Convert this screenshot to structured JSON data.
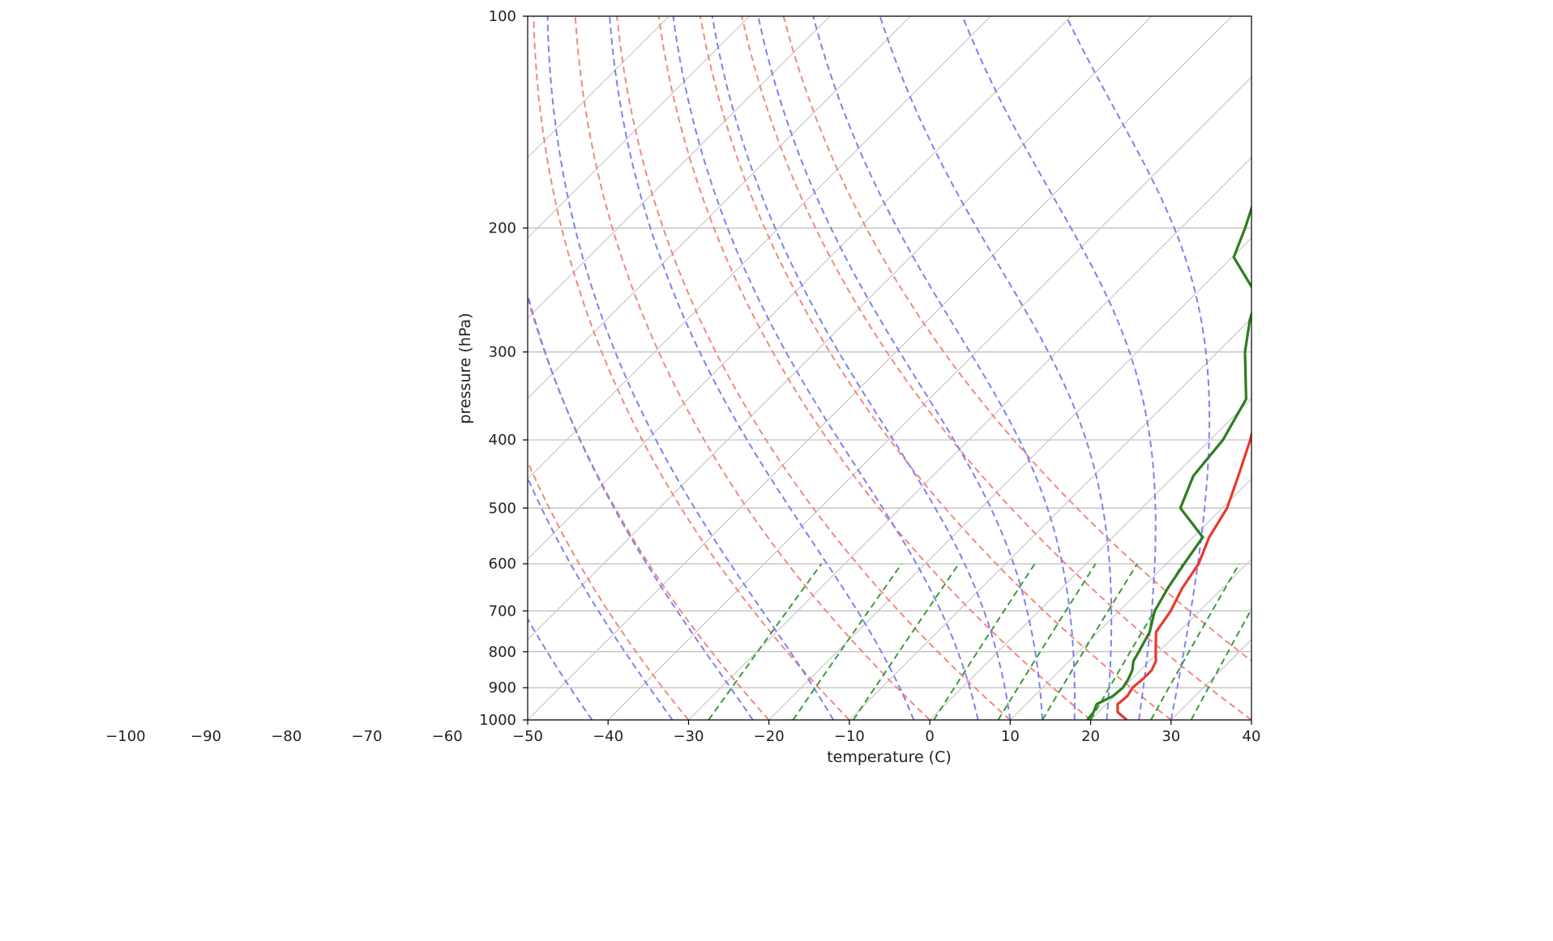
{
  "chart_data": {
    "type": "line",
    "subtype": "skew-t",
    "title": "",
    "xlabel": "temperature (C)",
    "ylabel": "pressure (hPa)",
    "xlim": [
      -50,
      40
    ],
    "ylim": [
      1000,
      100
    ],
    "yscale": "log",
    "x_ticks": [
      -100,
      -90,
      -80,
      -70,
      -60,
      -50,
      -40,
      -30,
      -20,
      -10,
      0,
      10,
      20,
      30,
      40
    ],
    "x_tick_labels": [
      "−100",
      "−90",
      "−80",
      "−70",
      "−60",
      "−50",
      "−40",
      "−30",
      "−20",
      "−10",
      "0",
      "10",
      "20",
      "30",
      "40"
    ],
    "y_ticks": [
      100,
      200,
      300,
      400,
      500,
      600,
      700,
      800,
      900,
      1000
    ],
    "y_tick_labels": [
      "100",
      "200",
      "300",
      "400",
      "500",
      "600",
      "700",
      "800",
      "900",
      "1000"
    ],
    "grid": true,
    "colors": {
      "temperature": "#e8392e",
      "dewpoint": "#2e7d1e",
      "isotherm": "#c8c8c8",
      "dry_adiabat": "#f08a80",
      "moist_adiabat": "#8080f0",
      "mixing_ratio": "#3c9a3c"
    },
    "series": [
      {
        "values": [
          [
            1000,
            24.5
          ],
          [
            975,
            22.4
          ],
          [
            950,
            21.4
          ],
          [
            925,
            21.6
          ],
          [
            900,
            21.2
          ],
          [
            875,
            21.4
          ],
          [
            850,
            21.4
          ],
          [
            825,
            20.8
          ],
          [
            800,
            19.6
          ],
          [
            750,
            17.2
          ],
          [
            700,
            16.4
          ],
          [
            650,
            15.0
          ],
          [
            600,
            14.0
          ],
          [
            550,
            12.0
          ],
          [
            500,
            10.6
          ],
          [
            450,
            8.0
          ],
          [
            400,
            5.0
          ],
          [
            350,
            1.2
          ],
          [
            300,
            -3.0
          ],
          [
            250,
            -8.6
          ],
          [
            200,
            -16.8
          ],
          [
            175,
            -20.8
          ],
          [
            150,
            -23.4
          ],
          [
            125,
            -23.4
          ],
          [
            110,
            -25.2
          ],
          [
            100,
            -26.4
          ]
        ]
      },
      {
        "values": [
          [
            1000,
            19.6
          ],
          [
            975,
            19.4
          ],
          [
            950,
            18.8
          ],
          [
            925,
            19.8
          ],
          [
            900,
            20.0
          ],
          [
            875,
            19.6
          ],
          [
            850,
            19.0
          ],
          [
            825,
            18.0
          ],
          [
            800,
            17.5
          ],
          [
            750,
            16.4
          ],
          [
            700,
            14.4
          ],
          [
            650,
            13.2
          ],
          [
            600,
            12.2
          ],
          [
            550,
            11.2
          ],
          [
            500,
            4.8
          ],
          [
            450,
            2.4
          ],
          [
            400,
            1.6
          ],
          [
            350,
            -0.6
          ],
          [
            300,
            -6.6
          ],
          [
            270,
            -10.0
          ],
          [
            250,
            -12.0
          ],
          [
            220,
            -19.8
          ],
          [
            200,
            -22.0
          ],
          [
            170,
            -26.2
          ],
          [
            155,
            -27.8
          ],
          [
            130,
            -32.2
          ],
          [
            112,
            -35.6
          ],
          [
            100,
            -33.8
          ]
        ]
      }
    ],
    "isotherm_temps": [
      -120,
      -110,
      -100,
      -90,
      -80,
      -70,
      -60,
      -50,
      -40,
      -30,
      -20,
      -10,
      0,
      10,
      20,
      30,
      40
    ],
    "dry_adiabat_thetas_C": [
      -30,
      -20,
      -10,
      0,
      10,
      20,
      30,
      40,
      50
    ],
    "moist_adiabat_start_temps_C": [
      -42,
      -32,
      -22,
      -12,
      -2,
      6,
      10,
      14,
      18,
      22,
      26,
      30
    ],
    "mixing_ratio_start_temps_C": [
      -27.5,
      -17,
      -9.5,
      0.5,
      8.5,
      14,
      20,
      27.5,
      32.5
    ]
  }
}
